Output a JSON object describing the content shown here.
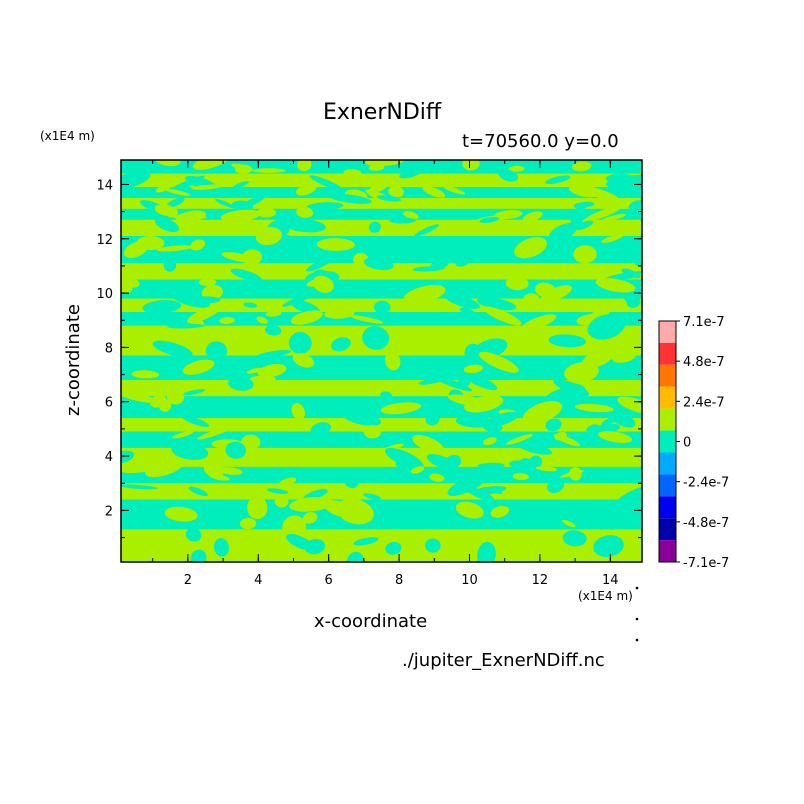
{
  "chart_data": {
    "type": "heatmap",
    "title": "ExnerNDiff",
    "subtitle": "t=70560.0 y=0.0",
    "xlabel": "x-coordinate",
    "ylabel": "z-coordinate",
    "x_unit": "(x1E4 m)",
    "y_unit": "(x1E4 m)",
    "xlim": [
      0.1,
      14.9
    ],
    "ylim": [
      0.1,
      14.9
    ],
    "x_ticks": [
      2,
      4,
      6,
      8,
      10,
      12,
      14
    ],
    "y_ticks": [
      2,
      4,
      6,
      8,
      10,
      12,
      14
    ],
    "colorbar": {
      "labels": [
        "7.1e-7",
        "4.8e-7",
        "2.4e-7",
        "0",
        "-2.4e-7",
        "-4.8e-7",
        "-7.1e-7"
      ],
      "colors": [
        "#ffaaaa",
        "#ff3333",
        "#ff7700",
        "#ffbb00",
        "#aaee00",
        "#00eebb",
        "#00aaff",
        "#0066ff",
        "#0000ee",
        "#0000aa",
        "#880099"
      ]
    },
    "field_colors": {
      "positive": "#aaee00",
      "negative": "#00eebb"
    },
    "bands": [
      {
        "z_range": [
          14.4,
          14.9
        ],
        "sign": "negative"
      },
      {
        "z_range": [
          13.9,
          14.4
        ],
        "sign": "positive"
      },
      {
        "z_range": [
          13.5,
          13.9
        ],
        "sign": "negative"
      },
      {
        "z_range": [
          13.1,
          13.5
        ],
        "sign": "positive"
      },
      {
        "z_range": [
          12.7,
          13.1
        ],
        "sign": "negative"
      },
      {
        "z_range": [
          12.1,
          12.7
        ],
        "sign": "positive"
      },
      {
        "z_range": [
          11.1,
          12.1
        ],
        "sign": "negative"
      },
      {
        "z_range": [
          10.5,
          11.1
        ],
        "sign": "positive"
      },
      {
        "z_range": [
          9.8,
          10.5
        ],
        "sign": "negative"
      },
      {
        "z_range": [
          9.3,
          9.8
        ],
        "sign": "positive"
      },
      {
        "z_range": [
          8.8,
          9.3
        ],
        "sign": "negative"
      },
      {
        "z_range": [
          7.7,
          8.8
        ],
        "sign": "positive"
      },
      {
        "z_range": [
          6.8,
          7.7
        ],
        "sign": "negative"
      },
      {
        "z_range": [
          6.2,
          6.8
        ],
        "sign": "positive"
      },
      {
        "z_range": [
          5.4,
          6.2
        ],
        "sign": "negative"
      },
      {
        "z_range": [
          4.9,
          5.4
        ],
        "sign": "positive"
      },
      {
        "z_range": [
          4.3,
          4.9
        ],
        "sign": "negative"
      },
      {
        "z_range": [
          3.6,
          4.3
        ],
        "sign": "positive"
      },
      {
        "z_range": [
          3.0,
          3.6
        ],
        "sign": "negative"
      },
      {
        "z_range": [
          2.4,
          3.0
        ],
        "sign": "positive"
      },
      {
        "z_range": [
          1.3,
          2.4
        ],
        "sign": "negative"
      },
      {
        "z_range": [
          0.1,
          1.3
        ],
        "sign": "positive"
      }
    ]
  },
  "footer": {
    "filename": "./jupiter_ExnerNDiff.nc"
  }
}
